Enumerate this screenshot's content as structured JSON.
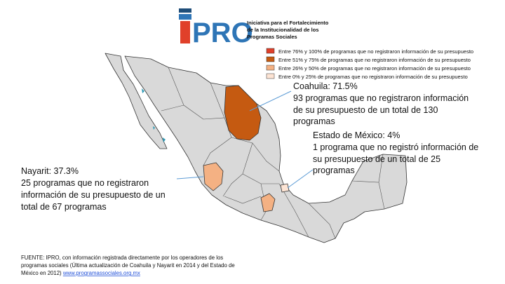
{
  "logo": {
    "name": "PRO",
    "subtitle": [
      "Iniciativa para el Fortalecimiento",
      "de la Institucionalidad de los",
      "Programas Sociales"
    ]
  },
  "legend": [
    {
      "label": "Entre 76% y 100% de programas que no registraron información de su presupuesto",
      "color": "#e0402a"
    },
    {
      "label": "Entre 51% y 75% de programas que no registraron información de su presupuesto",
      "color": "#c55a11"
    },
    {
      "label": "Entre 26% y 50% de programas que no registraron información de su presupuesto",
      "color": "#f4b183"
    },
    {
      "label": "Entre 0% y 25% de programas que no registraron información de su presupuesto",
      "color": "#fde4d4"
    }
  ],
  "annotations": [
    {
      "title": "Coahuila: 71.5%",
      "lines": [
        " 93 programas que no registraron información",
        "de su presupuesto de un total de 130",
        "programas"
      ]
    },
    {
      "title": "Estado de México: 4%",
      "lines": [
        "1 programa que no registró información de",
        "su presupuesto de un total de 25",
        "programas"
      ]
    },
    {
      "title": "Nayarit: 37.3%",
      "lines": [
        "25 programas que no registraron",
        "información de su presupuesto de un",
        "total de 67 programas"
      ]
    }
  ],
  "source": {
    "lines": [
      "FUENTE: IPRO, con información registrada directamente por los operadores de los",
      "programas sociales (Última actualización de Coahuila y Nayarit en 2014 y del Estado de",
      "México en 2012)"
    ],
    "link": "www.programassociales.org.mx"
  }
}
